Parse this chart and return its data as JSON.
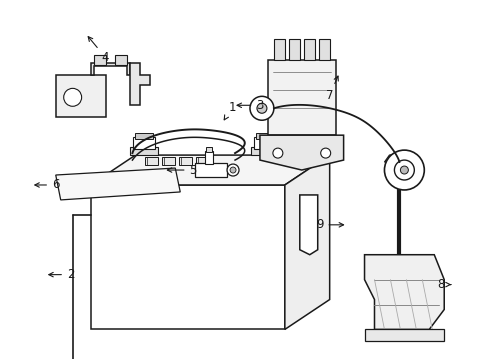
{
  "background_color": "#ffffff",
  "line_color": "#1a1a1a",
  "figsize": [
    4.89,
    3.6
  ],
  "dpi": 100,
  "label_fontsize": 8.5
}
